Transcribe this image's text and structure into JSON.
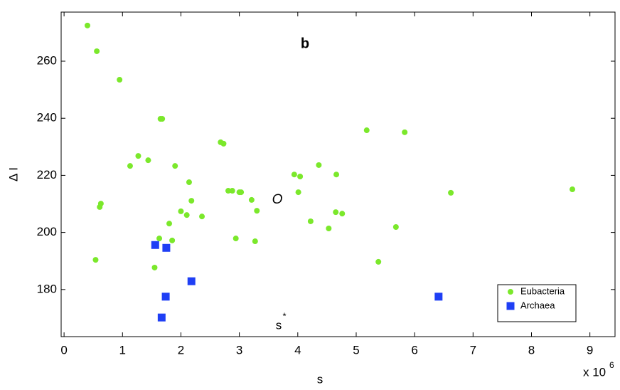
{
  "chart_data": {
    "type": "scatter",
    "title": "b",
    "x_label": "s",
    "y_label": "Δ I",
    "x_multiplier": "x 10",
    "x_multiplier_exponent": "6",
    "annotations": [
      "O",
      "s",
      "*"
    ],
    "xlim": [
      -0.05,
      9.43
    ],
    "ylim": [
      163.5,
      277.2
    ],
    "xticks": [
      0,
      1,
      2,
      3,
      4,
      5,
      6,
      7,
      8,
      9
    ],
    "yticks": [
      180,
      200,
      220,
      240,
      260
    ],
    "grid": false,
    "legend": "lower right",
    "series": [
      {
        "name": "Eubacteria",
        "color": "#7be82b",
        "marker": "circle",
        "x": [
          0.4,
          0.56,
          0.95,
          1.65,
          1.68,
          1.13,
          1.27,
          1.44,
          1.9,
          0.63,
          0.61,
          0.54,
          2.14,
          2.18,
          2.0,
          2.1,
          2.36,
          1.8,
          1.63,
          1.85,
          1.55,
          2.68,
          2.73,
          2.81,
          2.88,
          3.0,
          3.03,
          3.21,
          3.3,
          2.94,
          3.27,
          3.94,
          4.04,
          4.36,
          4.01,
          4.66,
          4.22,
          4.53,
          4.65,
          4.76,
          5.18,
          5.83,
          5.38,
          5.68,
          6.62,
          8.7
        ],
        "values": [
          272.5,
          263.5,
          253.5,
          239.8,
          239.8,
          223.3,
          226.8,
          225.3,
          223.3,
          210.1,
          208.9,
          190.4,
          217.6,
          211.1,
          207.4,
          206.1,
          205.6,
          203.1,
          197.9,
          197.2,
          187.7,
          231.6,
          231.1,
          214.6,
          214.6,
          214.1,
          214.1,
          211.4,
          207.6,
          197.9,
          196.9,
          220.3,
          219.6,
          223.6,
          214.1,
          220.3,
          203.9,
          201.4,
          207.1,
          206.6,
          235.8,
          235.1,
          189.7,
          201.9,
          213.9,
          215.1
        ]
      },
      {
        "name": "Archaea",
        "color": "#1f3ff5",
        "marker": "square",
        "x": [
          1.56,
          1.75,
          2.18,
          1.74,
          1.67,
          6.41
        ],
        "values": [
          195.6,
          194.6,
          182.9,
          177.5,
          170.2,
          177.5
        ]
      }
    ]
  }
}
